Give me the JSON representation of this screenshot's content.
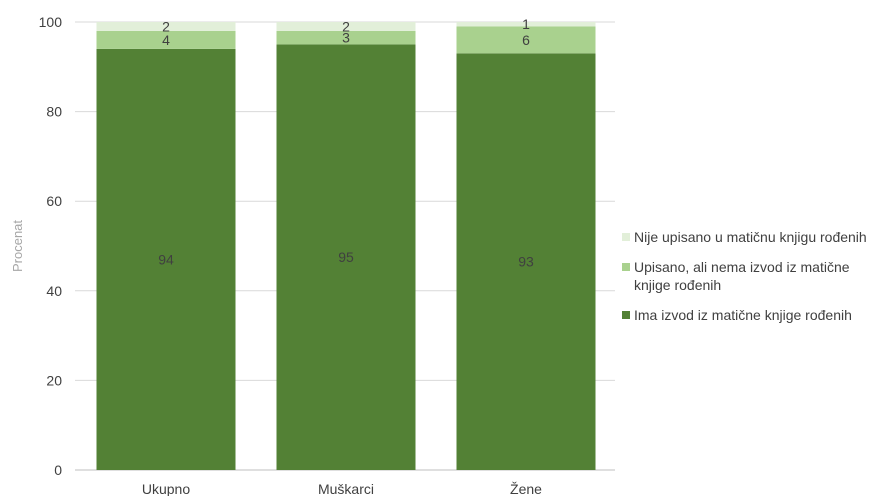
{
  "chart_data": {
    "type": "bar",
    "stacked": true,
    "categories": [
      "Ukupno",
      "Muškarci",
      "Žene"
    ],
    "series": [
      {
        "name": "Ima izvod iz matične knjige rođenih",
        "values": [
          94,
          95,
          93
        ],
        "labels": [
          "94",
          "95",
          "93"
        ],
        "color": "#538135"
      },
      {
        "name": "Upisano, ali nema izvod iz matične knjige rođenih",
        "values": [
          4,
          3,
          6
        ],
        "labels": [
          "4",
          "3",
          "6"
        ],
        "color": "#a9d18e"
      },
      {
        "name": "Nije upisano u matičnu knjigu rođenih",
        "values": [
          2,
          2,
          1
        ],
        "labels": [
          "2",
          "2",
          "1"
        ],
        "color": "#e2efd9"
      }
    ],
    "ylabel": "Procenat",
    "xlabel": "",
    "ylim": [
      0,
      100
    ],
    "yticks": [
      "0",
      "20",
      "40",
      "60",
      "80",
      "100"
    ],
    "grid": true,
    "legend_position": "right"
  },
  "legend": [
    {
      "label": "Nije upisano u matičnu knjigu rođenih",
      "color": "#e2efd9"
    },
    {
      "label": "Upisano, ali nema izvod iz matične knjige rođenih",
      "color": "#a9d18e"
    },
    {
      "label": "Ima izvod iz matične knjige rođenih",
      "color": "#538135"
    }
  ]
}
